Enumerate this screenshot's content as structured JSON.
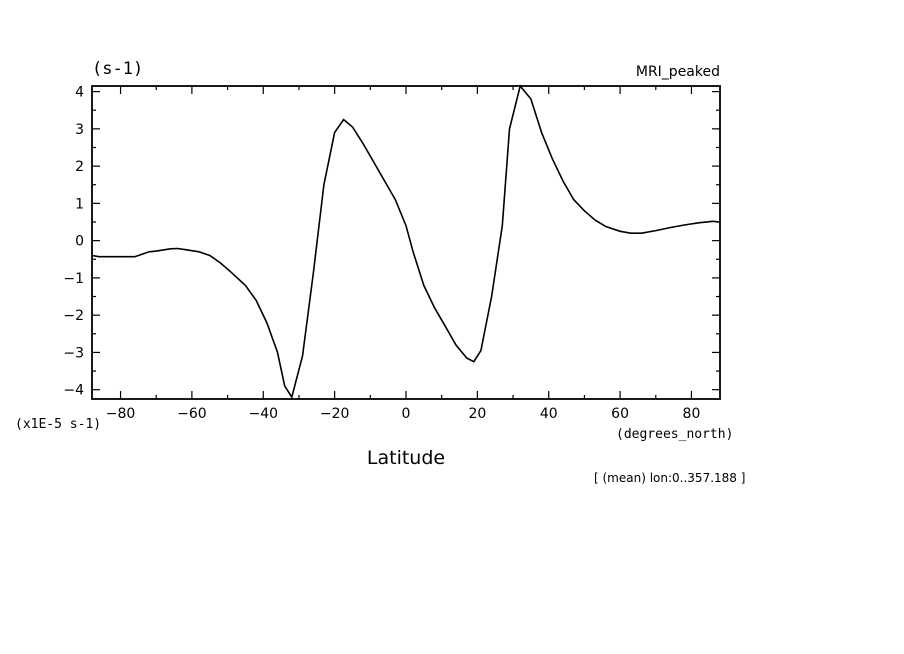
{
  "chart_data": {
    "type": "line",
    "title_left": "(s-1)",
    "title_right": "MRI_peaked",
    "xlabel": "Latitude",
    "x_units": "(degrees_north)",
    "y_units": "(x1E-5 s-1)",
    "footnote": "[ (mean) lon:0..357.188 ]",
    "xlim": [
      -88,
      88
    ],
    "ylim": [
      -4.25,
      4.15
    ],
    "x_ticks": [
      -80,
      -60,
      -40,
      -20,
      0,
      20,
      40,
      60,
      80
    ],
    "x_tick_labels": [
      "-80",
      "-60",
      "-40",
      "-20",
      "0",
      "20",
      "40",
      "60",
      "80"
    ],
    "y_ticks": [
      -4,
      -3,
      -2,
      -1,
      0,
      1,
      2,
      3,
      4
    ],
    "y_tick_labels": [
      "-4",
      "-3",
      "-2",
      "-1",
      "0",
      "1",
      "2",
      "3",
      "4"
    ],
    "series": [
      {
        "x": [
          -88,
          -86,
          -84,
          -80,
          -76,
          -72,
          -70,
          -66,
          -64,
          -62,
          -58,
          -55,
          -52,
          -49,
          -45,
          -42,
          -39,
          -36,
          -34,
          -32,
          -29,
          -26,
          -23,
          -20,
          -17.5,
          -15,
          -12,
          -9,
          -6,
          -3,
          0,
          2,
          5,
          8,
          11,
          14,
          17,
          19,
          21,
          24,
          27,
          29,
          32,
          35,
          38,
          41,
          44,
          47,
          50,
          53,
          56,
          60,
          63,
          66,
          70,
          74,
          78,
          82,
          86,
          88
        ],
        "y": [
          -0.4,
          -0.43,
          -0.43,
          -0.43,
          -0.43,
          -0.3,
          -0.28,
          -0.22,
          -0.21,
          -0.24,
          -0.3,
          -0.4,
          -0.6,
          -0.85,
          -1.2,
          -1.6,
          -2.2,
          -3.0,
          -3.9,
          -4.2,
          -3.1,
          -0.9,
          1.5,
          2.9,
          3.25,
          3.05,
          2.6,
          2.1,
          1.6,
          1.1,
          0.4,
          -0.3,
          -1.2,
          -1.8,
          -2.3,
          -2.8,
          -3.15,
          -3.25,
          -2.95,
          -1.5,
          0.4,
          3.0,
          4.15,
          3.8,
          2.9,
          2.2,
          1.6,
          1.1,
          0.8,
          0.55,
          0.38,
          0.25,
          0.2,
          0.2,
          0.27,
          0.35,
          0.42,
          0.48,
          0.52,
          0.5
        ]
      }
    ]
  }
}
